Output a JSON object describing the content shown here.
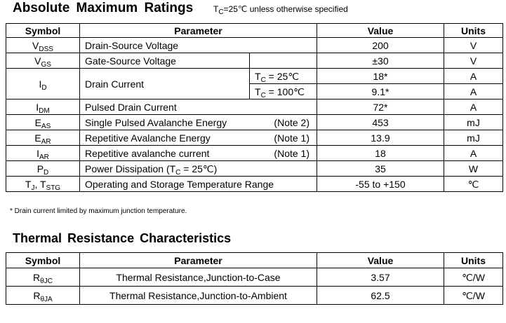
{
  "ratings": {
    "title": "Absolute  Maximum  Ratings",
    "condition_prefix": "T",
    "condition_sub": "C",
    "condition_rest": "=25℃ unless otherwise specified",
    "headers": {
      "symbol": "Symbol",
      "parameter": "Parameter",
      "value": "Value",
      "units": "Units"
    },
    "rows": {
      "vdss": {
        "sym": "V",
        "sub": "DSS",
        "param": "Drain-Source Voltage",
        "value": "200",
        "unit": "V"
      },
      "vgs": {
        "sym": "V",
        "sub": "GS",
        "param": "Gate-Source Voltage",
        "value": "±30",
        "unit": "V"
      },
      "id": {
        "sym": "I",
        "sub": "D",
        "param": "Drain Current",
        "cond1_pre": "T",
        "cond1_sub": "C",
        "cond1_post": " = 25℃",
        "value1": "18*",
        "unit1": "A",
        "cond2_pre": "T",
        "cond2_sub": "C",
        "cond2_post": " = 100℃",
        "value2": "9.1*",
        "unit2": "A"
      },
      "idm": {
        "sym": "I",
        "sub": "DM",
        "param": "Pulsed Drain Current",
        "value": "72*",
        "unit": "A"
      },
      "eas": {
        "sym": "E",
        "sub": "AS",
        "param": "Single Pulsed Avalanche Energy",
        "note": "(Note 2)",
        "value": "453",
        "unit": "mJ"
      },
      "ear": {
        "sym": "E",
        "sub": "AR",
        "param": "Repetitive Avalanche Energy",
        "note": "(Note 1)",
        "value": "13.9",
        "unit": "mJ"
      },
      "iar": {
        "sym": "I",
        "sub": "AR",
        "param": "Repetitive avalanche current",
        "note": "(Note 1)",
        "value": "18",
        "unit": "A"
      },
      "pd": {
        "sym": "P",
        "sub": "D",
        "param_pre": "Power Dissipation (T",
        "param_sub": "C",
        "param_post": " = 25℃)",
        "value": "35",
        "unit": "W"
      },
      "tj": {
        "sym1": "T",
        "sub1": "J",
        "sep": ", T",
        "sub2": "STG",
        "param": "Operating and Storage Temperature Range",
        "value": "-55 to +150",
        "unit": "℃"
      }
    },
    "footnote": "* Drain current limited by maximum junction temperature."
  },
  "thermal": {
    "title": "Thermal  Resistance Characteristics",
    "headers": {
      "symbol": "Symbol",
      "parameter": "Parameter",
      "value": "Value",
      "units": "Units"
    },
    "rows": {
      "rjc": {
        "sym": "R",
        "sub": "θJC",
        "param": "Thermal Resistance,Junction-to-Case",
        "value": "3.57",
        "unit": "℃/W"
      },
      "rja": {
        "sym": "R",
        "sub": "θJA",
        "param": "Thermal Resistance,Junction-to-Ambient",
        "value": "62.5",
        "unit": "℃/W"
      }
    }
  }
}
